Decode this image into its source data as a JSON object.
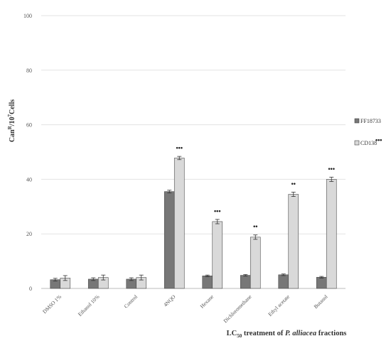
{
  "chart_data": {
    "type": "bar",
    "ylabel": {
      "main": "Can",
      "sup": "R",
      "mid": "/10",
      "sup2": "7",
      "end": "Cells"
    },
    "xlabel": {
      "main": "LC",
      "sub": "50",
      "mid": " treatment of ",
      "italic": "P. alliacea",
      "end": " fractions"
    },
    "ylim": [
      0,
      100
    ],
    "yticks": [
      0,
      20,
      40,
      60,
      80,
      100
    ],
    "grid": true,
    "legend_position": "right",
    "categories": [
      "DMSO 1%",
      "Ethanol 10%",
      "Control",
      "4NQO",
      "Hexane",
      "Dichloromethane",
      "Ethyl acetate",
      "Butanol"
    ],
    "series": [
      {
        "name": "FF18733",
        "color": "#777777",
        "values": [
          3.2,
          3.4,
          3.4,
          35.5,
          4.6,
          4.8,
          5.0,
          4.1
        ],
        "errors": [
          0.5,
          0.5,
          0.5,
          0.5,
          0.3,
          0.3,
          0.3,
          0.3
        ]
      },
      {
        "name": "CD138",
        "color": "#d9d9d9",
        "values": [
          3.8,
          4.0,
          4.0,
          47.8,
          24.5,
          18.8,
          34.5,
          40.0
        ],
        "errors": [
          0.9,
          0.9,
          0.9,
          0.6,
          0.8,
          0.8,
          0.8,
          0.8
        ]
      }
    ],
    "significance": [
      "",
      "",
      "",
      "•••",
      "•••",
      "••",
      "••",
      "•••"
    ],
    "legend_mark": "•••"
  }
}
